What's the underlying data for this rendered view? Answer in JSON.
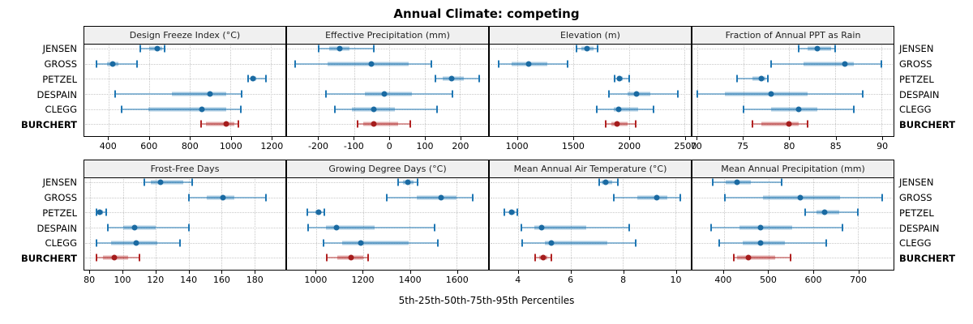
{
  "title": "Annual Climate: competing",
  "footer": "5th-25th-50th-75th-95th Percentiles",
  "colors": {
    "primary": "#1f77b4",
    "primary_dot": "#1a6aa2",
    "highlight": "#b22222",
    "highlight_dot": "#a51c1c",
    "grid_line": "#c8c8c8",
    "strip_bg": "#f0f0f0",
    "panel_border": "#000000"
  },
  "chart_data": {
    "type": "percentile-interval-dotplot",
    "percentile_levels": [
      5,
      25,
      50,
      75,
      95
    ],
    "stations": [
      {
        "name": "JENSEN",
        "highlight": false
      },
      {
        "name": "GROSS",
        "highlight": false
      },
      {
        "name": "PETZEL",
        "highlight": false
      },
      {
        "name": "DESPAIN",
        "highlight": false
      },
      {
        "name": "CLEGG",
        "highlight": false
      },
      {
        "name": "BURCHERT",
        "highlight": true
      }
    ],
    "panels": [
      {
        "title": "Design Freeze Index (°C)",
        "domain": [
          280,
          1270
        ],
        "ticks": [
          400,
          600,
          800,
          1000,
          1200
        ],
        "tick_labels": [
          "400",
          "600",
          "800",
          "1000",
          "1200"
        ],
        "series": [
          {
            "station": "JENSEN",
            "percentiles": [
              557,
              600,
              640,
              663,
              674
            ]
          },
          {
            "station": "GROSS",
            "percentiles": [
              340,
              390,
              420,
              447,
              540
            ]
          },
          {
            "station": "PETZEL",
            "percentiles": [
              1088,
              1100,
              1112,
              1126,
              1176
            ]
          },
          {
            "station": "DESPAIN",
            "percentiles": [
              430,
              710,
              897,
              978,
              1055
            ]
          },
          {
            "station": "CLEGG",
            "percentiles": [
              465,
              595,
              860,
              978,
              1050
            ]
          },
          {
            "station": "BURCHERT",
            "percentiles": [
              855,
              880,
              978,
              1018,
              1040
            ]
          }
        ]
      },
      {
        "title": "Effective Precipitation (mm)",
        "domain": [
          -290,
          280
        ],
        "ticks": [
          -200,
          -100,
          0,
          100,
          200
        ],
        "tick_labels": [
          "-200",
          "-100",
          "0",
          "100",
          "200"
        ],
        "series": [
          {
            "station": "JENSEN",
            "percentiles": [
              -200,
              -170,
              -140,
              -112,
              -45
            ]
          },
          {
            "station": "GROSS",
            "percentiles": [
              -268,
              -175,
              -50,
              55,
              118
            ]
          },
          {
            "station": "PETZEL",
            "percentiles": [
              130,
              152,
              176,
              210,
              255
            ]
          },
          {
            "station": "DESPAIN",
            "percentiles": [
              -180,
              -70,
              -15,
              65,
              178
            ]
          },
          {
            "station": "CLEGG",
            "percentiles": [
              -155,
              -105,
              -45,
              15,
              135
            ]
          },
          {
            "station": "BURCHERT",
            "percentiles": [
              -90,
              -75,
              -45,
              25,
              60
            ]
          }
        ]
      },
      {
        "title": "Elevation (m)",
        "domain": [
          750,
          2555
        ],
        "ticks": [
          1000,
          1500,
          2000,
          2500
        ],
        "tick_labels": [
          "1000",
          "1500",
          "2000",
          "2500"
        ],
        "series": [
          {
            "station": "JENSEN",
            "percentiles": [
              1530,
              1570,
              1620,
              1680,
              1720
            ]
          },
          {
            "station": "GROSS",
            "percentiles": [
              830,
              950,
              1100,
              1270,
              1450
            ]
          },
          {
            "station": "PETZEL",
            "percentiles": [
              1870,
              1895,
              1915,
              1945,
              2000
            ]
          },
          {
            "station": "DESPAIN",
            "percentiles": [
              1820,
              1990,
              2070,
              2190,
              2440
            ]
          },
          {
            "station": "CLEGG",
            "percentiles": [
              1710,
              1860,
              1910,
              2080,
              2220
            ]
          },
          {
            "station": "BURCHERT",
            "percentiles": [
              1790,
              1840,
              1895,
              1990,
              2060
            ]
          }
        ]
      },
      {
        "title": "Fraction of Annual PPT as Rain",
        "domain": [
          69.5,
          91.3
        ],
        "ticks": [
          70,
          75,
          80,
          85,
          90
        ],
        "tick_labels": [
          "70",
          "75",
          "80",
          "85",
          "90"
        ],
        "series": [
          {
            "station": "JENSEN",
            "percentiles": [
              81,
              82,
              83,
              84.5,
              85
            ]
          },
          {
            "station": "GROSS",
            "percentiles": [
              78,
              81.5,
              86,
              87,
              90
            ]
          },
          {
            "station": "PETZEL",
            "percentiles": [
              74.3,
              76,
              77,
              77.4,
              77.7
            ]
          },
          {
            "station": "DESPAIN",
            "percentiles": [
              70,
              73,
              78,
              82,
              88
            ]
          },
          {
            "station": "CLEGG",
            "percentiles": [
              75,
              78,
              81,
              83,
              87
            ]
          },
          {
            "station": "BURCHERT",
            "percentiles": [
              76,
              77,
              80,
              81,
              82
            ]
          }
        ]
      },
      {
        "title": "Frost-Free Days",
        "domain": [
          76.5,
          199
        ],
        "ticks": [
          80,
          100,
          120,
          140,
          160,
          180
        ],
        "tick_labels": [
          "80",
          "100",
          "120",
          "140",
          "160",
          "180"
        ],
        "series": [
          {
            "station": "JENSEN",
            "percentiles": [
              113,
              117,
              123,
              137,
              142
            ]
          },
          {
            "station": "GROSS",
            "percentiles": [
              140,
              151,
              161,
              168,
              187
            ]
          },
          {
            "station": "PETZEL",
            "percentiles": [
              84,
              85,
              86,
              88,
              90
            ]
          },
          {
            "station": "DESPAIN",
            "percentiles": [
              91,
              100,
              107,
              120,
              140
            ]
          },
          {
            "station": "CLEGG",
            "percentiles": [
              84,
              93,
              108,
              121,
              135
            ]
          },
          {
            "station": "BURCHERT",
            "percentiles": [
              84,
              88,
              95,
              103,
              110
            ]
          }
        ]
      },
      {
        "title": "Growing Degree Days (°C)",
        "domain": [
          875,
          1735
        ],
        "ticks": [
          1000,
          1200,
          1400,
          1600
        ],
        "tick_labels": [
          "1000",
          "1200",
          "1400",
          "1600"
        ],
        "series": [
          {
            "station": "JENSEN",
            "percentiles": [
              1350,
              1370,
              1390,
              1415,
              1432
            ]
          },
          {
            "station": "GROSS",
            "percentiles": [
              1300,
              1430,
              1535,
              1600,
              1670
            ]
          },
          {
            "station": "PETZEL",
            "percentiles": [
              960,
              995,
              1010,
              1022,
              1035
            ]
          },
          {
            "station": "DESPAIN",
            "percentiles": [
              965,
              1040,
              1085,
              1250,
              1505
            ]
          },
          {
            "station": "CLEGG",
            "percentiles": [
              1030,
              1110,
              1190,
              1395,
              1520
            ]
          },
          {
            "station": "BURCHERT",
            "percentiles": [
              1045,
              1090,
              1150,
              1200,
              1222
            ]
          }
        ]
      },
      {
        "title": "Mean Annual Air Temperature (°C)",
        "domain": [
          2.9,
          10.6
        ],
        "ticks": [
          4,
          6,
          8,
          10
        ],
        "tick_labels": [
          "4",
          "6",
          "8",
          "10"
        ],
        "series": [
          {
            "station": "JENSEN",
            "percentiles": [
              7.1,
              7.2,
              7.35,
              7.6,
              7.8
            ]
          },
          {
            "station": "GROSS",
            "percentiles": [
              7.65,
              8.55,
              9.3,
              9.7,
              10.2
            ]
          },
          {
            "station": "PETZEL",
            "percentiles": [
              3.45,
              3.65,
              3.75,
              3.85,
              3.95
            ]
          },
          {
            "station": "DESPAIN",
            "percentiles": [
              4.1,
              4.6,
              4.9,
              6.6,
              8.25
            ]
          },
          {
            "station": "CLEGG",
            "percentiles": [
              4.15,
              5.0,
              5.25,
              7.4,
              8.5
            ]
          },
          {
            "station": "BURCHERT",
            "percentiles": [
              4.65,
              4.8,
              4.95,
              5.1,
              5.25
            ]
          }
        ]
      },
      {
        "title": "Mean Annual Precipitation (mm)",
        "domain": [
          330,
          780
        ],
        "ticks": [
          400,
          500,
          600,
          700
        ],
        "tick_labels": [
          "400",
          "500",
          "600",
          "700"
        ],
        "series": [
          {
            "station": "JENSEN",
            "percentiles": [
              375,
              405,
              430,
              460,
              530
            ]
          },
          {
            "station": "GROSS",
            "percentiles": [
              403,
              487,
              572,
              660,
              755
            ]
          },
          {
            "station": "PETZEL",
            "percentiles": [
              583,
              608,
              625,
              658,
              700
            ]
          },
          {
            "station": "DESPAIN",
            "percentiles": [
              372,
              435,
              482,
              553,
              665
            ]
          },
          {
            "station": "CLEGG",
            "percentiles": [
              390,
              443,
              483,
              537,
              630
            ]
          },
          {
            "station": "BURCHERT",
            "percentiles": [
              422,
              430,
              456,
              515,
              550
            ]
          }
        ]
      }
    ]
  }
}
